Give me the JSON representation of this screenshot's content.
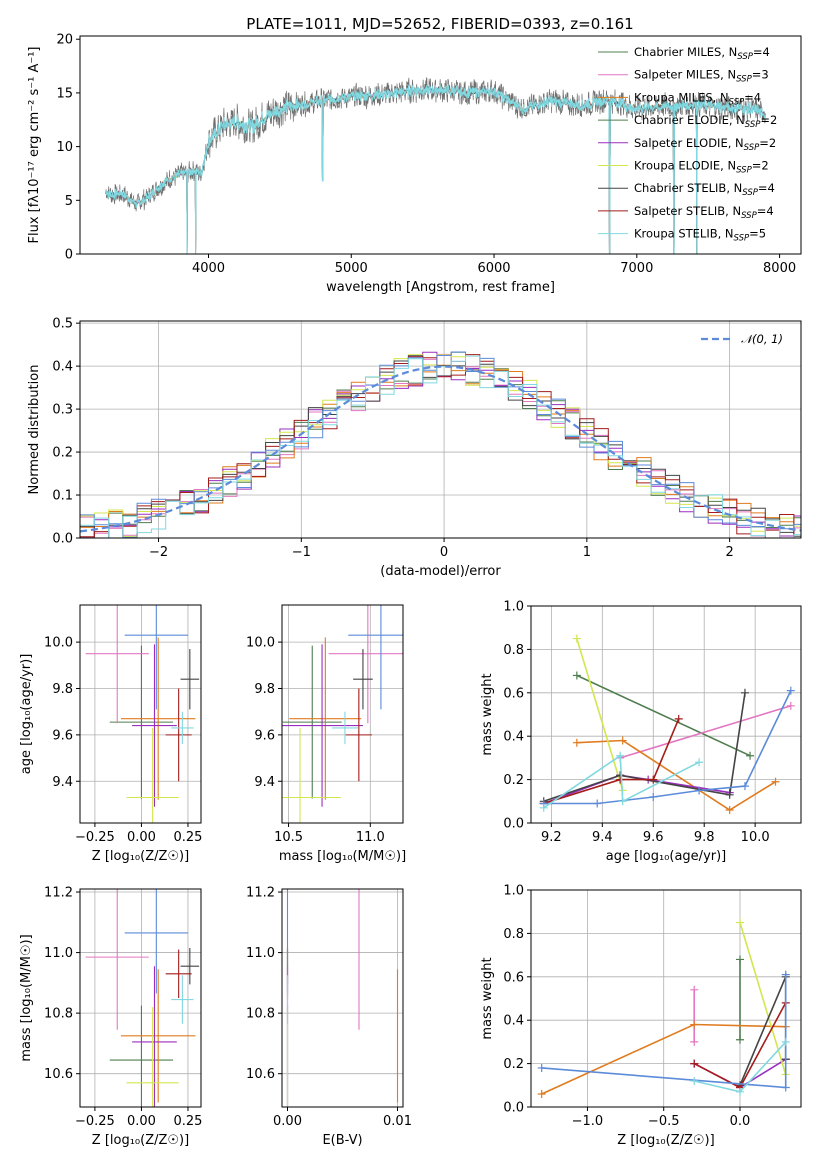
{
  "chart_data": [
    {
      "id": "spectrum",
      "type": "line",
      "title": "PLATE=1011, MJD=52652, FIBERID=0393, z=0.161",
      "xlabel": "wavelength [Angstrom, rest frame]",
      "ylabel": "Flux [fλ10⁻¹⁷ erg cm⁻² s⁻¹ A⁻¹]",
      "xlim": [
        3100,
        8150
      ],
      "ylim": [
        0,
        20.3
      ],
      "xticks": [
        4000,
        5000,
        6000,
        7000,
        8000
      ],
      "yticks": [
        0,
        5,
        10,
        15,
        20
      ],
      "observed_envelope": {
        "x": [
          3280,
          3320,
          3400,
          3500,
          3600,
          3700,
          3800,
          3900,
          3950,
          4000,
          4100,
          4200,
          4300,
          4400,
          4500,
          4600,
          4800,
          5000,
          5200,
          5400,
          5600,
          5800,
          6000,
          6200,
          6400,
          6600,
          6800,
          7000,
          7200,
          7400,
          7600,
          7800,
          7900
        ],
        "y": [
          5.8,
          5.5,
          5.6,
          4.6,
          5.6,
          6.8,
          7.4,
          7.8,
          7.5,
          10.5,
          12.0,
          12.3,
          11.8,
          12.8,
          13.5,
          13.8,
          14.3,
          14.7,
          14.8,
          15.2,
          15.3,
          15.0,
          15.2,
          13.5,
          14.3,
          13.8,
          14.4,
          13.5,
          13.8,
          13.9,
          13.7,
          13.5,
          13.1
        ]
      },
      "drops": [
        {
          "x": 3850,
          "y": 0
        },
        {
          "x": 3910,
          "y": 0
        },
        {
          "x": 4800,
          "y": 6.8
        },
        {
          "x": 6810,
          "y": 0
        },
        {
          "x": 7260,
          "y": 0
        },
        {
          "x": 7420,
          "y": 0
        }
      ],
      "legend": [
        {
          "name": "Chabrier MILES, N",
          "sub": "SSP",
          "tail": "=4",
          "color": "#4f7d4f"
        },
        {
          "name": "Salpeter MILES, N",
          "sub": "SSP",
          "tail": "=3",
          "color": "#e377c2"
        },
        {
          "name": "Kroupa MILES, N",
          "sub": "SSP",
          "tail": "=4",
          "color": "#e07b1f"
        },
        {
          "name": "Chabrier ELODIE, N",
          "sub": "SSP",
          "tail": "=2",
          "color": "#4f7d4f"
        },
        {
          "name": "Salpeter ELODIE, N",
          "sub": "SSP",
          "tail": "=2",
          "color": "#9a2fbf"
        },
        {
          "name": "Kroupa ELODIE, N",
          "sub": "SSP",
          "tail": "=2",
          "color": "#d4e64f"
        },
        {
          "name": "Chabrier STELIB, N",
          "sub": "SSP",
          "tail": "=4",
          "color": "#444444"
        },
        {
          "name": "Salpeter STELIB, N",
          "sub": "SSP",
          "tail": "=4",
          "color": "#a41c1c"
        },
        {
          "name": "Kroupa STELIB, N",
          "sub": "SSP",
          "tail": "=5",
          "color": "#80d8e0"
        }
      ]
    },
    {
      "id": "residuals",
      "type": "line",
      "xlabel": "(data-model)/error",
      "ylabel": "Normed distribution",
      "xlim": [
        -2.55,
        2.5
      ],
      "ylim": [
        0,
        0.505
      ],
      "xticks": [
        -2,
        -1,
        0,
        1,
        2
      ],
      "xtick_labels": [
        "−2",
        "−1",
        "0",
        "1",
        "2"
      ],
      "yticks": [
        0.0,
        0.1,
        0.2,
        0.3,
        0.4,
        0.5
      ],
      "ytick_labels": [
        "0.0",
        "0.1",
        "0.2",
        "0.3",
        "0.4",
        "0.5"
      ],
      "reference_curve": {
        "name": "𝒩(0, 1)",
        "mean": 0,
        "sigma": 1,
        "color": "#5b8bd9"
      },
      "histogram_bins": {
        "start": -2.55,
        "width": 0.1
      }
    },
    {
      "id": "age-vs-Z",
      "type": "scatter",
      "xlabel": "Z [log₁₀(Z/Z☉)]",
      "ylabel": "age  [log₁₀(age/yr)]",
      "xlim": [
        -0.33,
        0.32
      ],
      "ylim": [
        9.22,
        10.16
      ],
      "xticks": [
        -0.25,
        0.0,
        0.25
      ],
      "xtick_labels": [
        "−0.25",
        "0.00",
        "0.25"
      ],
      "yticks": [
        9.4,
        9.6,
        9.8,
        10.0
      ],
      "ytick_labels": [
        "9.4",
        "9.6",
        "9.8",
        "10.0"
      ]
    },
    {
      "id": "age-vs-mass",
      "type": "scatter",
      "xlabel": "mass [log₁₀(M/M☉)]",
      "xlim": [
        10.46,
        11.2
      ],
      "ylim": [
        9.22,
        10.16
      ],
      "xticks": [
        10.5,
        11.0
      ],
      "xtick_labels": [
        "10.5",
        "11.0"
      ],
      "yticks": [
        9.4,
        9.6,
        9.8,
        10.0
      ],
      "ytick_labels": [
        "9.4",
        "9.6",
        "9.8",
        "10.0"
      ]
    },
    {
      "id": "weight-vs-age",
      "type": "line",
      "xlabel": "age  [log₁₀(age/yr)]",
      "ylabel": "mass weight",
      "xlim": [
        9.12,
        10.18
      ],
      "ylim": [
        0,
        1.0
      ],
      "xticks": [
        9.2,
        9.4,
        9.6,
        9.8,
        10.0
      ],
      "xtick_labels": [
        "9.2",
        "9.4",
        "9.6",
        "9.8",
        "10.0"
      ],
      "yticks": [
        0.0,
        0.2,
        0.4,
        0.6,
        0.8,
        1.0
      ],
      "ytick_labels": [
        "0.0",
        "0.2",
        "0.4",
        "0.6",
        "0.8",
        "1.0"
      ]
    },
    {
      "id": "mass-vs-Z",
      "type": "scatter",
      "xlabel": "Z [log₁₀(Z/Z☉)]",
      "ylabel": "mass [log₁₀(M/M☉)]",
      "xlim": [
        -0.33,
        0.32
      ],
      "ylim": [
        10.49,
        11.21
      ],
      "xticks": [
        -0.25,
        0.0,
        0.25
      ],
      "xtick_labels": [
        "−0.25",
        "0.00",
        "0.25"
      ],
      "yticks": [
        10.6,
        10.8,
        11.0,
        11.2
      ],
      "ytick_labels": [
        "10.6",
        "10.8",
        "11.0",
        "11.2"
      ]
    },
    {
      "id": "mass-vs-EBV",
      "type": "scatter",
      "xlabel": "E(B-V)",
      "xlim": [
        -0.0005,
        0.0105
      ],
      "ylim": [
        10.49,
        11.21
      ],
      "xticks": [
        0.0,
        0.01
      ],
      "xtick_labels": [
        "0.00",
        "0.01"
      ],
      "yticks": [
        10.6,
        10.8,
        11.0,
        11.2
      ],
      "ytick_labels": [
        "10.6",
        "10.8",
        "11.0",
        "11.2"
      ]
    },
    {
      "id": "weight-vs-Z",
      "type": "line",
      "xlabel": "Z [log₁₀(Z/Z☉)]",
      "ylabel": "mass weight",
      "xlim": [
        -1.37,
        0.4
      ],
      "ylim": [
        0,
        1.0
      ],
      "xticks": [
        -1.0,
        -0.5,
        0.0
      ],
      "xtick_labels": [
        "−1.0",
        "−0.5",
        "0.0"
      ],
      "yticks": [
        0.0,
        0.2,
        0.4,
        0.6,
        0.8,
        1.0
      ],
      "ytick_labels": [
        "0.0",
        "0.2",
        "0.4",
        "0.6",
        "0.8",
        "1.0"
      ]
    }
  ],
  "models": [
    {
      "color": "#4f7d4f",
      "Z": 0.0,
      "Zerr": 0.17,
      "age": 9.655,
      "ageErr": 0.33,
      "mass": 10.645,
      "massErr": 0.18,
      "ebv": 0.0,
      "age_w": [
        [
          9.3,
          0.68
        ],
        [
          9.98,
          0.31
        ]
      ],
      "Z_w": [
        [
          0.0,
          0.68
        ],
        [
          0.0,
          0.31
        ]
      ]
    },
    {
      "color": "#e377c2",
      "Z": -0.13,
      "Zerr": 0.17,
      "age": 9.95,
      "ageErr": 0.3,
      "mass": 10.985,
      "massErr": 0.24,
      "ebv": 0.0065,
      "age_w": [
        [
          9.47,
          0.3
        ],
        [
          10.14,
          0.54
        ]
      ],
      "Z_w": [
        [
          -0.3,
          0.54
        ],
        [
          -0.3,
          0.3
        ]
      ]
    },
    {
      "color": "#e07b1f",
      "Z": 0.09,
      "Zerr": 0.2,
      "age": 9.67,
      "ageErr": 0.35,
      "mass": 10.725,
      "massErr": 0.22,
      "ebv": 0.01,
      "age_w": [
        [
          9.3,
          0.37
        ],
        [
          9.48,
          0.38
        ],
        [
          9.9,
          0.06
        ],
        [
          10.08,
          0.19
        ]
      ],
      "Z_w": [
        [
          -1.3,
          0.06
        ],
        [
          -0.3,
          0.38
        ],
        [
          0.3,
          0.37
        ]
      ]
    },
    {
      "color": "#9a2fbf",
      "Z": 0.07,
      "Zerr": 0.12,
      "age": 9.64,
      "ageErr": 0.35,
      "mass": 10.705,
      "massErr": 0.25,
      "ebv": 0.0,
      "age_w": [
        [
          9.17,
          0.09
        ],
        [
          9.47,
          0.22
        ],
        [
          9.58,
          0.2
        ],
        [
          9.9,
          0.14
        ]
      ],
      "Z_w": [
        [
          -0.3,
          0.2
        ],
        [
          0.0,
          0.09
        ],
        [
          0.3,
          0.22
        ]
      ]
    },
    {
      "color": "#d4e64f",
      "Z": 0.06,
      "Zerr": 0.14,
      "age": 9.33,
      "ageErr": 0.3,
      "mass": 10.57,
      "massErr": 0.25,
      "ebv": 0.0,
      "age_w": [
        [
          9.3,
          0.85
        ],
        [
          9.48,
          0.15
        ]
      ],
      "Z_w": [
        [
          0.0,
          0.85
        ],
        [
          0.3,
          0.15
        ]
      ]
    },
    {
      "color": "#444444",
      "Z": 0.26,
      "Zerr": 0.05,
      "age": 9.84,
      "ageErr": 0.13,
      "mass": 10.955,
      "massErr": 0.06,
      "ebv": 0.0,
      "age_w": [
        [
          9.17,
          0.1
        ],
        [
          9.47,
          0.22
        ],
        [
          9.9,
          0.13
        ],
        [
          9.96,
          0.6
        ]
      ],
      "Z_w": [
        [
          0.0,
          0.1
        ],
        [
          0.3,
          0.6
        ],
        [
          0.3,
          0.22
        ]
      ]
    },
    {
      "color": "#a41c1c",
      "Z": 0.2,
      "Zerr": 0.07,
      "age": 9.6,
      "ageErr": 0.2,
      "mass": 10.93,
      "massErr": 0.08,
      "ebv": 0.0,
      "age_w": [
        [
          9.17,
          0.09
        ],
        [
          9.47,
          0.2
        ],
        [
          9.6,
          0.2
        ],
        [
          9.7,
          0.48
        ]
      ],
      "Z_w": [
        [
          -0.3,
          0.2
        ],
        [
          0.0,
          0.09
        ],
        [
          0.3,
          0.48
        ]
      ]
    },
    {
      "color": "#5b8bd9",
      "Z": 0.08,
      "Zerr": 0.17,
      "age": 10.03,
      "ageErr": 0.32,
      "mass": 11.065,
      "massErr": 0.2,
      "ebv": 0.0,
      "age_w": [
        [
          9.17,
          0.09
        ],
        [
          9.38,
          0.09
        ],
        [
          9.6,
          0.12
        ],
        [
          9.78,
          0.15
        ],
        [
          9.96,
          0.17
        ],
        [
          10.14,
          0.61
        ]
      ],
      "Z_w": [
        [
          -1.3,
          0.18
        ],
        [
          0.3,
          0.09
        ],
        [
          0.3,
          0.61
        ]
      ]
    },
    {
      "color": "#80d8e0",
      "Z": 0.22,
      "Zerr": 0.06,
      "age": 9.63,
      "ageErr": 0.07,
      "mass": 10.845,
      "massErr": 0.08,
      "ebv": 0.0,
      "age_w": [
        [
          9.17,
          0.07
        ],
        [
          9.47,
          0.31
        ],
        [
          9.48,
          0.1
        ],
        [
          9.78,
          0.28
        ]
      ],
      "Z_w": [
        [
          -0.3,
          0.12
        ],
        [
          0.0,
          0.07
        ],
        [
          0.3,
          0.3
        ]
      ]
    }
  ]
}
